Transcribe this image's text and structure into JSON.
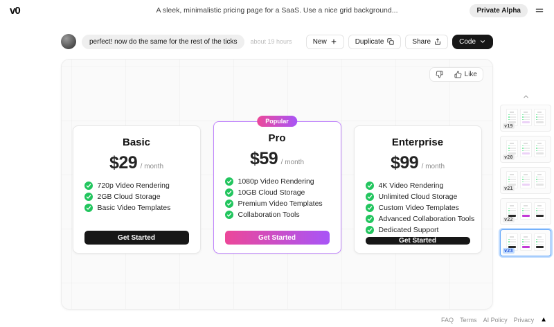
{
  "header": {
    "logo": "v0",
    "title": "A sleek, minimalistic pricing page for a SaaS. Use a nice grid background...",
    "badge": "Private Alpha"
  },
  "toolbar": {
    "prompt": "perfect! now do the same for the rest of the ticks",
    "timestamp": "about 19 hours",
    "buttons": {
      "new": "New",
      "duplicate": "Duplicate",
      "share": "Share",
      "code": "Code"
    }
  },
  "feedback": {
    "like_label": "Like"
  },
  "pricing": {
    "plans": [
      {
        "name": "Basic",
        "price": "$29",
        "period": "/ month",
        "badge": null,
        "features": [
          "720p Video Rendering",
          "2GB Cloud Storage",
          "Basic Video Templates"
        ],
        "cta": "Get Started",
        "highlighted": false
      },
      {
        "name": "Pro",
        "price": "$59",
        "period": "/ month",
        "badge": "Popular",
        "features": [
          "1080p Video Rendering",
          "10GB Cloud Storage",
          "Premium Video Templates",
          "Collaboration Tools"
        ],
        "cta": "Get Started",
        "highlighted": true
      },
      {
        "name": "Enterprise",
        "price": "$99",
        "period": "/ month",
        "badge": null,
        "features": [
          "4K Video Rendering",
          "Unlimited Cloud Storage",
          "Custom Video Templates",
          "Advanced Collaboration Tools",
          "Dedicated Support"
        ],
        "cta": "Get Started",
        "highlighted": false
      }
    ]
  },
  "versions": {
    "items": [
      "v19",
      "v20",
      "v21",
      "v22",
      "v23"
    ],
    "selected": "v23"
  },
  "footer": {
    "links": [
      "FAQ",
      "Terms",
      "AI Policy",
      "Privacy"
    ]
  },
  "colors": {
    "accent_green": "#22c55e",
    "gradient_start": "#ec4899",
    "gradient_end": "#a855f7",
    "highlight_border": "#c084fc",
    "selected_blue": "#bfdbfe",
    "button_dark": "#171717"
  }
}
